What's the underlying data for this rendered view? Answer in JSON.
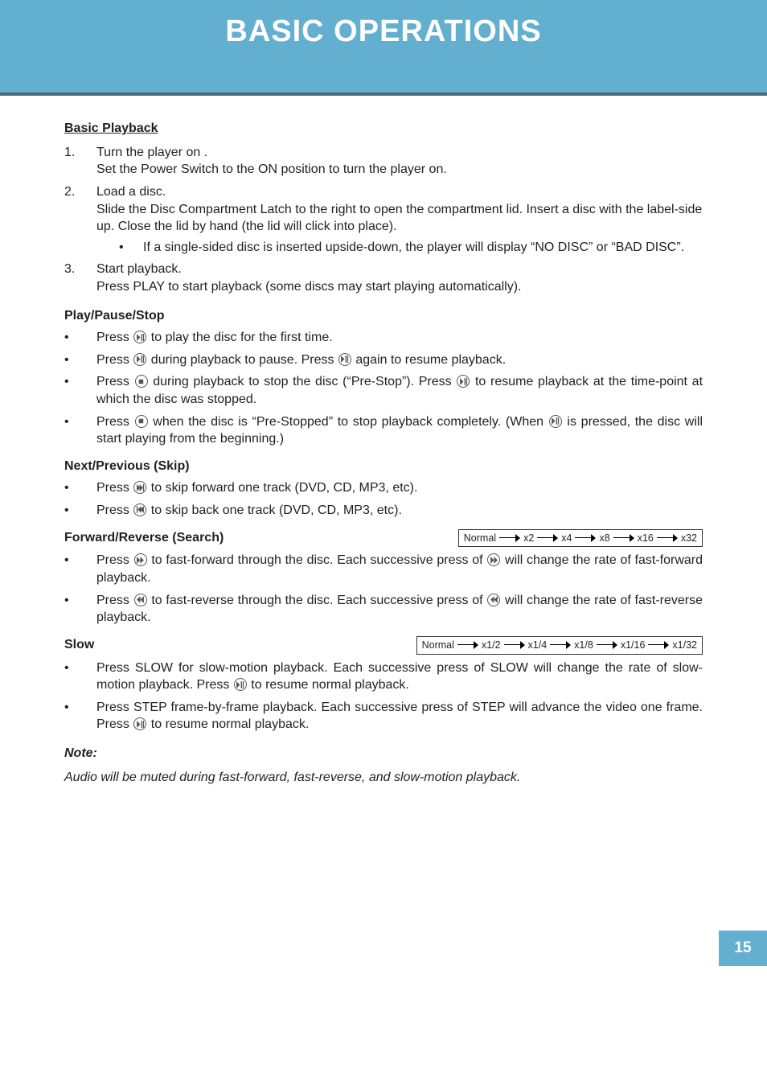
{
  "header": {
    "title": "BASIC OPERATIONS",
    "title_fontsize": 38
  },
  "colors": {
    "band": "#63afd0",
    "band_border": "#4a6a7c",
    "text": "#231f20",
    "white": "#ffffff"
  },
  "basic_playback": {
    "heading": "Basic Playback",
    "items": [
      {
        "num": "1.",
        "line1": "Turn the player on .",
        "line2": "Set the Power Switch to the ON position to turn the player on."
      },
      {
        "num": "2.",
        "line1": "Load a disc.",
        "line2": "Slide the Disc Compartment Latch to the right to open the compartment lid. Insert a disc with the label-side up. Close the lid by hand (the lid will click into place).",
        "sub": [
          "If a single-sided disc is inserted upside-down, the player will display “NO DISC” or “BAD DISC”."
        ]
      },
      {
        "num": "3.",
        "line1": "Start playback.",
        "line2": "Press PLAY to start playback (some discs may start playing automatically)."
      }
    ]
  },
  "play_pause_stop": {
    "heading": "Play/Pause/Stop",
    "items": [
      {
        "pre": "Press ",
        "icon": "play-pause",
        "post": " to play the disc for the first time."
      },
      {
        "pre": "Press ",
        "icon": "play-pause",
        "mid": " during playback to pause. Press ",
        "icon2": "play-pause",
        "post": " again to resume playback."
      },
      {
        "pre": "Press ",
        "icon": "stop",
        "mid": " during playback to stop the disc (“Pre-Stop”). Press ",
        "icon2": "play-pause",
        "post": " to resume playback at the time-point at which the disc was stopped."
      },
      {
        "pre": "Press ",
        "icon": "stop",
        "mid": " when the disc is “Pre-Stopped” to stop playback completely. (When ",
        "icon2": "play-pause",
        "post": " is pressed, the disc will start playing from the beginning.)"
      }
    ]
  },
  "skip": {
    "heading": "Next/Previous (Skip)",
    "items": [
      {
        "pre": "Press ",
        "icon": "next",
        "post": " to skip forward one track (DVD, CD,  MP3, etc)."
      },
      {
        "pre": "Press ",
        "icon": "prev",
        "post": " to skip back one track (DVD, CD, MP3, etc)."
      }
    ]
  },
  "search": {
    "heading": "Forward/Reverse (Search)",
    "rates": {
      "label": "Normal",
      "steps": [
        "x2",
        "x4",
        "x8",
        "x16",
        "x32"
      ]
    },
    "items": [
      {
        "pre": "Press ",
        "icon": "ffwd",
        "mid": " to fast-forward through the disc. Each successive press of ",
        "icon2": "ffwd",
        "post": " will change the rate of fast-forward playback."
      },
      {
        "pre": "Press ",
        "icon": "frev",
        "mid": " to fast-reverse through the disc. Each successive press of ",
        "icon2": "frev",
        "post": " will change the rate of fast-reverse playback."
      }
    ]
  },
  "slow": {
    "heading": "Slow",
    "rates": {
      "label": "Normal",
      "steps": [
        "x1/2",
        "x1/4",
        "x1/8",
        "x1/16",
        "x1/32"
      ]
    },
    "items": [
      {
        "pre": "Press SLOW for slow-motion playback. Each successive press of SLOW will change the rate of slow-motion playback. Press ",
        "icon": "play-pause",
        "post": " to resume normal playback."
      },
      {
        "pre": "Press STEP frame-by-frame playback. Each successive press of STEP will advance the video one frame. Press ",
        "icon": "play-pause",
        "post": " to resume normal playback."
      }
    ]
  },
  "note": {
    "heading": "Note:",
    "text": "Audio will be muted during fast-forward, fast-reverse, and slow-motion playback."
  },
  "page_number": "15"
}
